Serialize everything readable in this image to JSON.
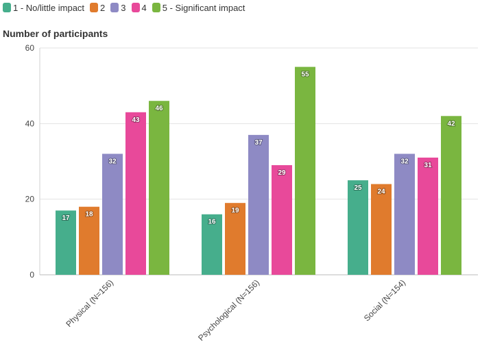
{
  "chart_data": {
    "type": "bar",
    "title": "",
    "ylabel": "Number of participants",
    "xlabel": "",
    "ylim": [
      0,
      60
    ],
    "yticks": [
      0,
      20,
      40,
      60
    ],
    "grid": true,
    "legend_position": "top-left",
    "categories": [
      "Physical (N=156)",
      "Psychological (N=156)",
      "Social (N=154)"
    ],
    "series": [
      {
        "name": "1 - No/little impact",
        "color": "#46ae8c",
        "values": [
          17,
          16,
          25
        ]
      },
      {
        "name": "2",
        "color": "#e07b2d",
        "values": [
          18,
          19,
          24
        ]
      },
      {
        "name": "3",
        "color": "#8e8ac4",
        "values": [
          32,
          37,
          32
        ]
      },
      {
        "name": "4",
        "color": "#e8499a",
        "values": [
          43,
          29,
          31
        ]
      },
      {
        "name": "5 - Significant impact",
        "color": "#7ab640",
        "values": [
          46,
          55,
          42
        ]
      }
    ]
  }
}
